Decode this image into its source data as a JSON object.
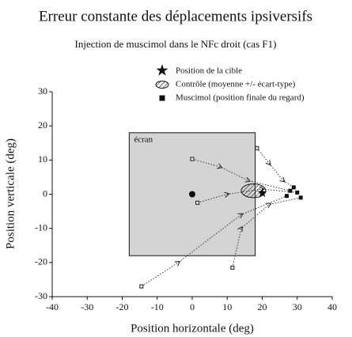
{
  "chart_data": {
    "type": "trajectory",
    "title": "Erreur constante des déplacements ipsiversifs",
    "subtitle": "Injection de muscimol dans le NFc droit (cas  F1)",
    "xlabel": "Position horizontale (deg)",
    "ylabel": "Position verticale (deg)",
    "xlim": [
      -40,
      40
    ],
    "ylim": [
      -30,
      30
    ],
    "xticks": [
      -40,
      -30,
      -20,
      -10,
      0,
      10,
      20,
      30,
      40
    ],
    "yticks": [
      -30,
      -20,
      -10,
      0,
      10,
      20,
      30
    ],
    "legend": [
      "Position de la cible",
      "Contrôle (moyenne +/- écart-type)",
      "Muscimol (position finale du regard)"
    ],
    "screen": {
      "label": "écran",
      "x": [
        -18,
        18
      ],
      "y": [
        -18,
        18
      ],
      "color": "#d4d4d4"
    },
    "fixation": {
      "x": 0,
      "y": 0
    },
    "target": {
      "x": 20,
      "y": 0
    },
    "control": {
      "x": 17.5,
      "y": 1,
      "sd_x": 3.5,
      "sd_y": 2
    },
    "trajectories": [
      {
        "x": [
          0,
          8,
          16,
          28
        ],
        "y": [
          10.3,
          8,
          4,
          1
        ]
      },
      {
        "x": [
          1.5,
          10,
          20,
          30
        ],
        "y": [
          -2.5,
          0,
          1.5,
          0.5
        ]
      },
      {
        "x": [
          18.5,
          22,
          26,
          29
        ],
        "y": [
          13.5,
          9,
          4,
          2
        ]
      },
      {
        "x": [
          11.5,
          14,
          22,
          31
        ],
        "y": [
          -21.5,
          -10,
          -3,
          -1
        ]
      },
      {
        "x": [
          -14.5,
          -4,
          14,
          27
        ],
        "y": [
          -27,
          -20,
          -6,
          -0.5
        ]
      }
    ]
  }
}
